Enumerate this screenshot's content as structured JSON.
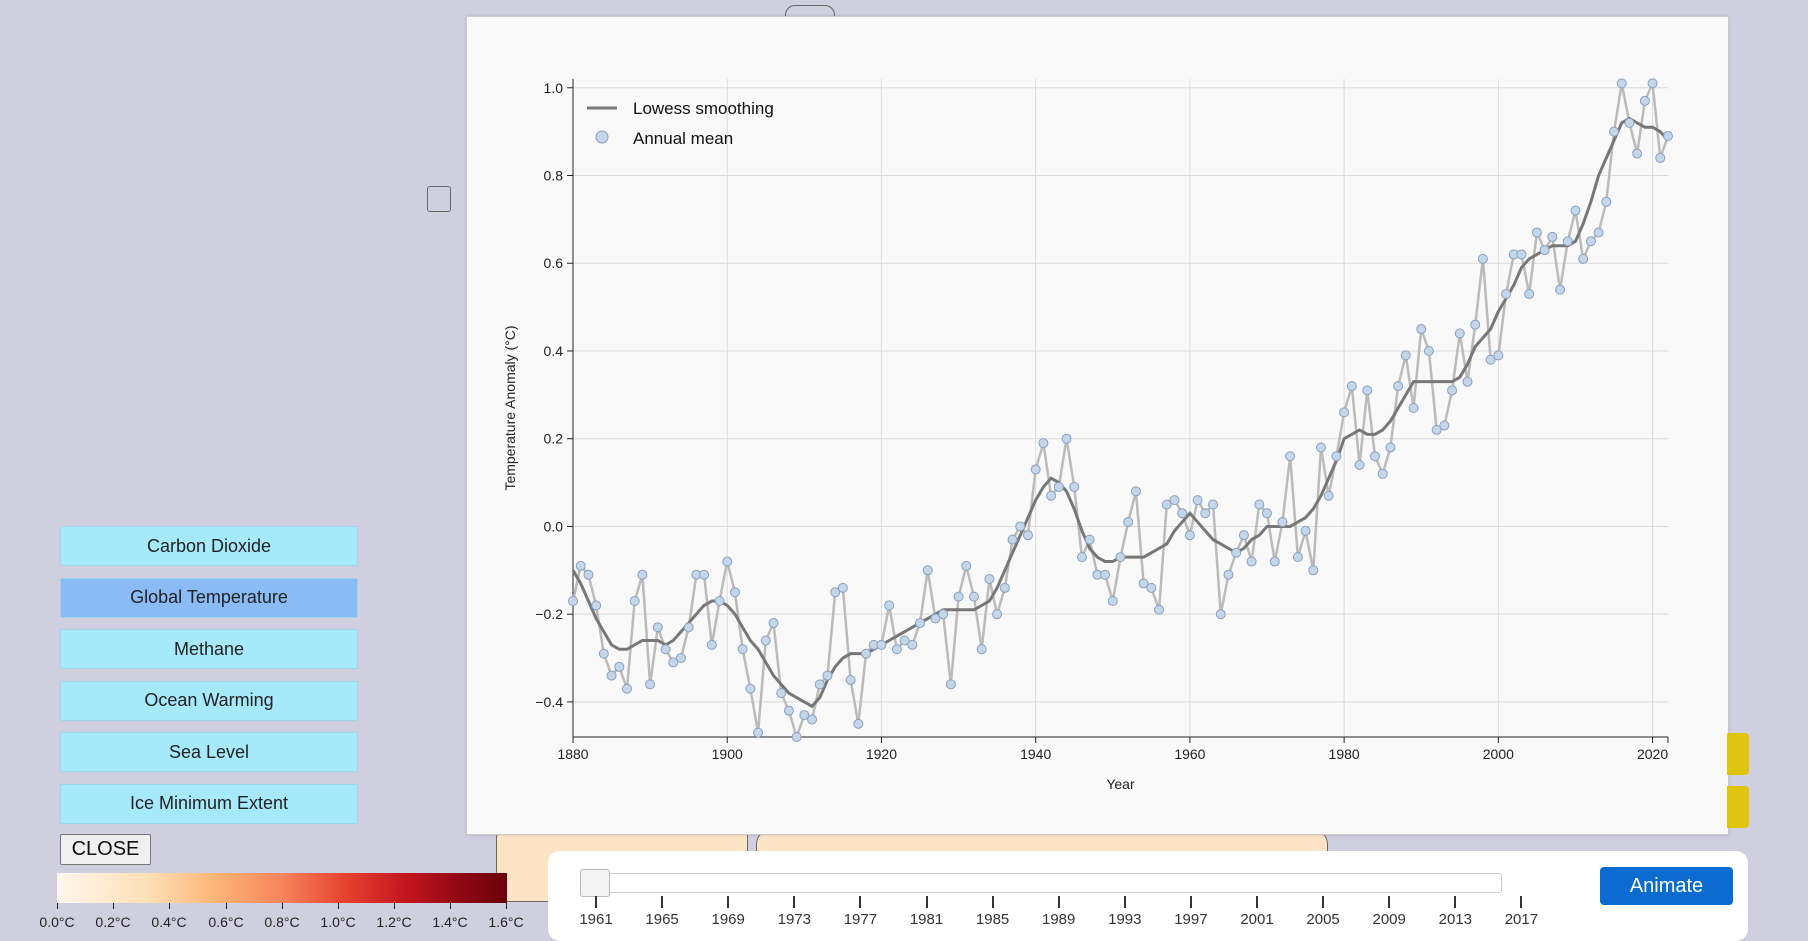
{
  "datasets": [
    {
      "label": "Carbon Dioxide",
      "active": false
    },
    {
      "label": "Global Temperature",
      "active": true
    },
    {
      "label": "Methane",
      "active": false
    },
    {
      "label": "Ocean Warming",
      "active": false
    },
    {
      "label": "Sea Level",
      "active": false
    },
    {
      "label": "Ice Minimum Extent",
      "active": false
    }
  ],
  "close_label": "CLOSE",
  "color_legend": {
    "labels": [
      "0.0°C",
      "0.2°C",
      "0.4°C",
      "0.6°C",
      "0.8°C",
      "1.0°C",
      "1.2°C",
      "1.4°C",
      "1.6°C"
    ]
  },
  "timeline": {
    "years": [
      "1961",
      "1965",
      "1969",
      "1973",
      "1977",
      "1981",
      "1985",
      "1989",
      "1993",
      "1997",
      "2001",
      "2005",
      "2009",
      "2013",
      "2017"
    ],
    "current_year": "1961"
  },
  "animate_label": "Animate",
  "colors": {
    "accent": "#0b6bd1",
    "active_button": "#8abbf5",
    "button": "#a6e9fb",
    "smooth_line": "#777777",
    "annual_line": "#bbbbbb",
    "point_fill": "#c4d6ea"
  },
  "chart_data": {
    "type": "line",
    "xlabel": "Year",
    "ylabel": "Temperature Anomaly (°C)",
    "xlim": [
      1880,
      2022
    ],
    "ylim": [
      -0.48,
      1.02
    ],
    "x_ticks": [
      1880,
      1900,
      1920,
      1940,
      1960,
      1980,
      2000,
      2020
    ],
    "y_ticks": [
      "1.0",
      "0.8",
      "0.6",
      "0.4",
      "0.2",
      "0.0",
      "−0.2",
      "−0.4"
    ],
    "y_tick_values": [
      1.0,
      0.8,
      0.6,
      0.4,
      0.2,
      0.0,
      -0.2,
      -0.4
    ],
    "legend": {
      "position": "top-left",
      "entries": [
        "Lowess smoothing",
        "Annual mean"
      ]
    },
    "grid": true,
    "x": [
      1880,
      1881,
      1882,
      1883,
      1884,
      1885,
      1886,
      1887,
      1888,
      1889,
      1890,
      1891,
      1892,
      1893,
      1894,
      1895,
      1896,
      1897,
      1898,
      1899,
      1900,
      1901,
      1902,
      1903,
      1904,
      1905,
      1906,
      1907,
      1908,
      1909,
      1910,
      1911,
      1912,
      1913,
      1914,
      1915,
      1916,
      1917,
      1918,
      1919,
      1920,
      1921,
      1922,
      1923,
      1924,
      1925,
      1926,
      1927,
      1928,
      1929,
      1930,
      1931,
      1932,
      1933,
      1934,
      1935,
      1936,
      1937,
      1938,
      1939,
      1940,
      1941,
      1942,
      1943,
      1944,
      1945,
      1946,
      1947,
      1948,
      1949,
      1950,
      1951,
      1952,
      1953,
      1954,
      1955,
      1956,
      1957,
      1958,
      1959,
      1960,
      1961,
      1962,
      1963,
      1964,
      1965,
      1966,
      1967,
      1968,
      1969,
      1970,
      1971,
      1972,
      1973,
      1974,
      1975,
      1976,
      1977,
      1978,
      1979,
      1980,
      1981,
      1982,
      1983,
      1984,
      1985,
      1986,
      1987,
      1988,
      1989,
      1990,
      1991,
      1992,
      1993,
      1994,
      1995,
      1996,
      1997,
      1998,
      1999,
      2000,
      2001,
      2002,
      2003,
      2004,
      2005,
      2006,
      2007,
      2008,
      2009,
      2010,
      2011,
      2012,
      2013,
      2014,
      2015,
      2016,
      2017,
      2018,
      2019,
      2020,
      2021,
      2022
    ],
    "series": [
      {
        "name": "Annual mean",
        "values": [
          -0.17,
          -0.09,
          -0.11,
          -0.18,
          -0.29,
          -0.34,
          -0.32,
          -0.37,
          -0.17,
          -0.11,
          -0.36,
          -0.23,
          -0.28,
          -0.31,
          -0.3,
          -0.23,
          -0.11,
          -0.11,
          -0.27,
          -0.17,
          -0.08,
          -0.15,
          -0.28,
          -0.37,
          -0.47,
          -0.26,
          -0.22,
          -0.38,
          -0.42,
          -0.48,
          -0.43,
          -0.44,
          -0.36,
          -0.34,
          -0.15,
          -0.14,
          -0.35,
          -0.45,
          -0.29,
          -0.27,
          -0.27,
          -0.18,
          -0.28,
          -0.26,
          -0.27,
          -0.22,
          -0.1,
          -0.21,
          -0.2,
          -0.36,
          -0.16,
          -0.09,
          -0.16,
          -0.28,
          -0.12,
          -0.2,
          -0.14,
          -0.03,
          0.0,
          -0.02,
          0.13,
          0.19,
          0.07,
          0.09,
          0.2,
          0.09,
          -0.07,
          -0.03,
          -0.11,
          -0.11,
          -0.17,
          -0.07,
          0.01,
          0.08,
          -0.13,
          -0.14,
          -0.19,
          0.05,
          0.06,
          0.03,
          -0.02,
          0.06,
          0.03,
          0.05,
          -0.2,
          -0.11,
          -0.06,
          -0.02,
          -0.08,
          0.05,
          0.03,
          -0.08,
          0.01,
          0.16,
          -0.07,
          -0.01,
          -0.1,
          0.18,
          0.07,
          0.16,
          0.26,
          0.32,
          0.14,
          0.31,
          0.16,
          0.12,
          0.18,
          0.32,
          0.39,
          0.27,
          0.45,
          0.4,
          0.22,
          0.23,
          0.31,
          0.44,
          0.33,
          0.46,
          0.61,
          0.38,
          0.39,
          0.53,
          0.62,
          0.62,
          0.53,
          0.67,
          0.63,
          0.66,
          0.54,
          0.65,
          0.72,
          0.61,
          0.65,
          0.67,
          0.74,
          0.9,
          1.01,
          0.92,
          0.85,
          0.97,
          1.01,
          0.84,
          0.89
        ]
      },
      {
        "name": "Lowess smoothing",
        "values": [
          -0.1,
          -0.13,
          -0.17,
          -0.21,
          -0.24,
          -0.27,
          -0.28,
          -0.28,
          -0.27,
          -0.26,
          -0.26,
          -0.26,
          -0.27,
          -0.26,
          -0.24,
          -0.22,
          -0.2,
          -0.18,
          -0.17,
          -0.17,
          -0.18,
          -0.2,
          -0.23,
          -0.26,
          -0.28,
          -0.31,
          -0.34,
          -0.36,
          -0.38,
          -0.39,
          -0.4,
          -0.41,
          -0.39,
          -0.35,
          -0.32,
          -0.3,
          -0.29,
          -0.29,
          -0.29,
          -0.28,
          -0.27,
          -0.26,
          -0.25,
          -0.24,
          -0.23,
          -0.22,
          -0.21,
          -0.2,
          -0.19,
          -0.19,
          -0.19,
          -0.19,
          -0.19,
          -0.18,
          -0.17,
          -0.14,
          -0.1,
          -0.06,
          -0.02,
          0.02,
          0.06,
          0.09,
          0.11,
          0.1,
          0.08,
          0.04,
          -0.01,
          -0.05,
          -0.07,
          -0.08,
          -0.08,
          -0.07,
          -0.07,
          -0.07,
          -0.07,
          -0.06,
          -0.05,
          -0.04,
          -0.01,
          0.01,
          0.03,
          0.01,
          -0.01,
          -0.03,
          -0.04,
          -0.05,
          -0.06,
          -0.05,
          -0.03,
          -0.02,
          0.0,
          0.0,
          0.0,
          0.0,
          0.01,
          0.02,
          0.04,
          0.07,
          0.11,
          0.15,
          0.2,
          0.21,
          0.22,
          0.21,
          0.21,
          0.22,
          0.24,
          0.27,
          0.3,
          0.33,
          0.33,
          0.33,
          0.33,
          0.33,
          0.33,
          0.34,
          0.37,
          0.41,
          0.43,
          0.45,
          0.49,
          0.52,
          0.55,
          0.59,
          0.61,
          0.62,
          0.63,
          0.64,
          0.64,
          0.64,
          0.65,
          0.69,
          0.74,
          0.8,
          0.84,
          0.88,
          0.92,
          0.93,
          0.92,
          0.91,
          0.91,
          0.9,
          0.88
        ]
      }
    ]
  }
}
